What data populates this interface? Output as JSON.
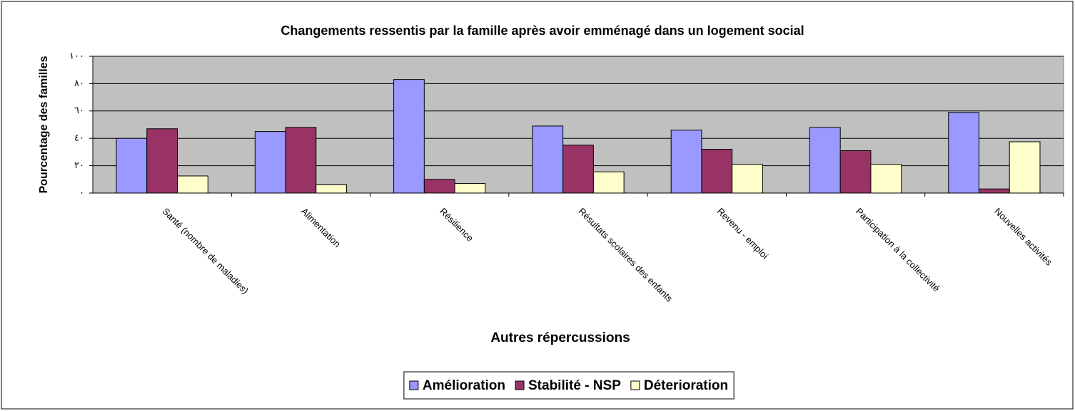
{
  "chart_data": {
    "type": "bar",
    "title": "Changements ressentis par la famille après avoir emménagé dans un logement social",
    "x_label": "Autres répercussions",
    "y_label": "Pourcentage des familles",
    "categories": [
      "Santé (nombre de maladies)",
      "Alimentation",
      "Résilience",
      "Résultats scolaires des enfants",
      "Revenu - emploi",
      "Participation à la collectivité",
      "Nouvelles activités"
    ],
    "series": [
      {
        "name": "Amélioration",
        "color": "#9999ff",
        "values": [
          40,
          45,
          83,
          49,
          46,
          48,
          59
        ]
      },
      {
        "name": "Stabilité - NSP",
        "color": "#993366",
        "values": [
          47,
          48,
          10,
          35,
          32,
          31,
          3
        ]
      },
      {
        "name": "Déterioration",
        "color": "#ffffcc",
        "values": [
          12.5,
          6,
          7,
          15.5,
          21,
          21,
          37.5
        ]
      }
    ],
    "ylim": [
      0,
      100
    ],
    "yticks": [
      {
        "value": 0,
        "label": "٠"
      },
      {
        "value": 20,
        "label": "٢٠"
      },
      {
        "value": 40,
        "label": "٤٠"
      },
      {
        "value": 60,
        "label": "٦٠"
      },
      {
        "value": 80,
        "label": "٨٠"
      },
      {
        "value": 100,
        "label": "١٠٠"
      }
    ],
    "grid": true,
    "legend": "bottom"
  }
}
